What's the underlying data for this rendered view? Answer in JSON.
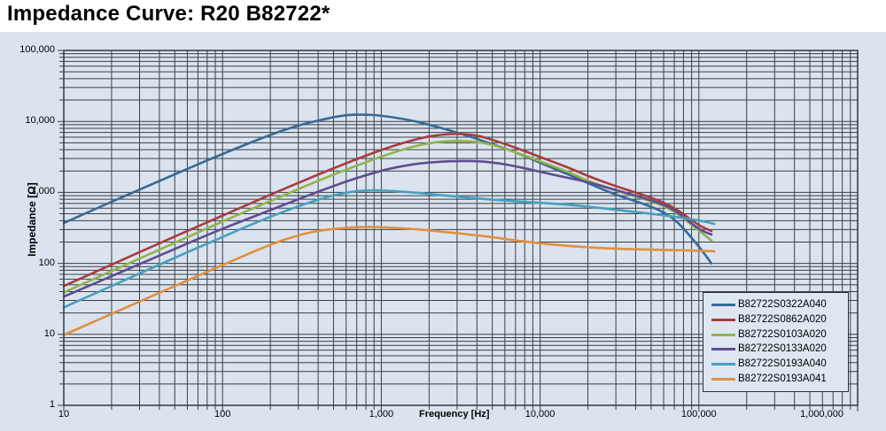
{
  "title": "Impedance Curve: R20 B82722*",
  "colors": {
    "page_bg": "#ffffff",
    "figure_bg": "#dbe3ef",
    "grid": "#3a4045",
    "plot_border": "#31373c",
    "legend_bg": "#dee6f2",
    "legend_border": "#2b3034",
    "text": "#000000"
  },
  "legend": {
    "position": "bottom-right-inside-plot",
    "items": [
      "B82722S0322A040",
      "B82722S0862A020",
      "B82722S0103A020",
      "B82722S0133A020",
      "B82722S0193A040",
      "B82722S0193A041"
    ]
  },
  "chart_data": {
    "type": "line",
    "title": "Impedance Curve: R20 B82722*",
    "grid": "log-log, major and minor gridlines on both axes",
    "legend_position": "bottom right inside plot area",
    "x_axis": {
      "label": "Frequency [Hz]",
      "scale": "log",
      "min": 10,
      "max": 1000000,
      "tick_labels": [
        "10",
        "100",
        "1,000",
        "10,000",
        "100,000",
        "1,000,000"
      ]
    },
    "y_axis": {
      "label": "Impedance [Ω]",
      "scale": "log",
      "min": 1,
      "max": 100000,
      "tick_labels": [
        "1",
        "10",
        "100",
        "1,000",
        "10,000",
        "100,000"
      ]
    },
    "series": [
      {
        "name": "B82722S0322A040",
        "color": "#356a99",
        "points": [
          [
            10,
            370
          ],
          [
            20,
            740
          ],
          [
            50,
            1800
          ],
          [
            100,
            3500
          ],
          [
            200,
            6500
          ],
          [
            300,
            8800
          ],
          [
            400,
            10300
          ],
          [
            500,
            11500
          ],
          [
            620,
            12400
          ],
          [
            800,
            12500
          ],
          [
            1000,
            12100
          ],
          [
            1500,
            10500
          ],
          [
            2000,
            9000
          ],
          [
            3000,
            7000
          ],
          [
            5000,
            4800
          ],
          [
            7000,
            3700
          ],
          [
            10000,
            2600
          ],
          [
            15000,
            1800
          ],
          [
            20000,
            1350
          ],
          [
            30000,
            920
          ],
          [
            50000,
            640
          ],
          [
            70000,
            440
          ],
          [
            100000,
            175
          ],
          [
            120000,
            100
          ]
        ]
      },
      {
        "name": "B82722S0862A020",
        "color": "#a83c3e",
        "points": [
          [
            10,
            48
          ],
          [
            20,
            96
          ],
          [
            50,
            240
          ],
          [
            100,
            470
          ],
          [
            200,
            930
          ],
          [
            500,
            2200
          ],
          [
            1000,
            4000
          ],
          [
            1500,
            5300
          ],
          [
            2000,
            6200
          ],
          [
            2500,
            6550
          ],
          [
            3000,
            6700
          ],
          [
            4000,
            6400
          ],
          [
            5000,
            5500
          ],
          [
            7000,
            4300
          ],
          [
            10000,
            3150
          ],
          [
            15000,
            2250
          ],
          [
            20000,
            1700
          ],
          [
            30000,
            1220
          ],
          [
            50000,
            850
          ],
          [
            70000,
            620
          ],
          [
            100000,
            340
          ],
          [
            120000,
            285
          ]
        ]
      },
      {
        "name": "B82722S0103A020",
        "color": "#92b44c",
        "points": [
          [
            10,
            39
          ],
          [
            20,
            78
          ],
          [
            50,
            195
          ],
          [
            100,
            390
          ],
          [
            200,
            760
          ],
          [
            500,
            1800
          ],
          [
            1000,
            3200
          ],
          [
            1500,
            4300
          ],
          [
            2000,
            4950
          ],
          [
            2500,
            5250
          ],
          [
            3000,
            5350
          ],
          [
            4000,
            5150
          ],
          [
            5000,
            4700
          ],
          [
            7000,
            3700
          ],
          [
            10000,
            2750
          ],
          [
            15000,
            1950
          ],
          [
            20000,
            1450
          ],
          [
            30000,
            1060
          ],
          [
            50000,
            760
          ],
          [
            70000,
            550
          ],
          [
            100000,
            290
          ],
          [
            120000,
            210
          ]
        ]
      },
      {
        "name": "B82722S0133A020",
        "color": "#5d4d92",
        "points": [
          [
            10,
            34
          ],
          [
            20,
            66
          ],
          [
            50,
            160
          ],
          [
            100,
            310
          ],
          [
            200,
            560
          ],
          [
            500,
            1250
          ],
          [
            1000,
            2050
          ],
          [
            1500,
            2450
          ],
          [
            2000,
            2650
          ],
          [
            3000,
            2780
          ],
          [
            4000,
            2760
          ],
          [
            5000,
            2650
          ],
          [
            7000,
            2350
          ],
          [
            10000,
            1950
          ],
          [
            15000,
            1600
          ],
          [
            20000,
            1400
          ],
          [
            30000,
            1080
          ],
          [
            50000,
            780
          ],
          [
            70000,
            580
          ],
          [
            100000,
            300
          ],
          [
            120000,
            255
          ]
        ]
      },
      {
        "name": "B82722S0193A040",
        "color": "#47a0c0",
        "points": [
          [
            10,
            24
          ],
          [
            20,
            48
          ],
          [
            50,
            120
          ],
          [
            100,
            235
          ],
          [
            200,
            460
          ],
          [
            400,
            800
          ],
          [
            600,
            1000
          ],
          [
            800,
            1070
          ],
          [
            1000,
            1065
          ],
          [
            1500,
            1010
          ],
          [
            2000,
            950
          ],
          [
            3000,
            870
          ],
          [
            5000,
            790
          ],
          [
            7000,
            750
          ],
          [
            10000,
            715
          ],
          [
            15000,
            670
          ],
          [
            20000,
            630
          ],
          [
            30000,
            570
          ],
          [
            50000,
            500
          ],
          [
            70000,
            455
          ],
          [
            100000,
            405
          ],
          [
            125000,
            360
          ]
        ]
      },
      {
        "name": "B82722S0193A041",
        "color": "#e0903f",
        "points": [
          [
            10,
            9.8
          ],
          [
            20,
            19.5
          ],
          [
            50,
            48
          ],
          [
            100,
            95
          ],
          [
            200,
            185
          ],
          [
            300,
            250
          ],
          [
            400,
            290
          ],
          [
            600,
            318
          ],
          [
            800,
            327
          ],
          [
            1000,
            324
          ],
          [
            1500,
            308
          ],
          [
            2000,
            292
          ],
          [
            3000,
            266
          ],
          [
            5000,
            235
          ],
          [
            7000,
            210
          ],
          [
            10000,
            192
          ],
          [
            15000,
            176
          ],
          [
            20000,
            168
          ],
          [
            30000,
            161
          ],
          [
            50000,
            156
          ],
          [
            100000,
            151
          ],
          [
            125000,
            148
          ]
        ]
      }
    ]
  }
}
